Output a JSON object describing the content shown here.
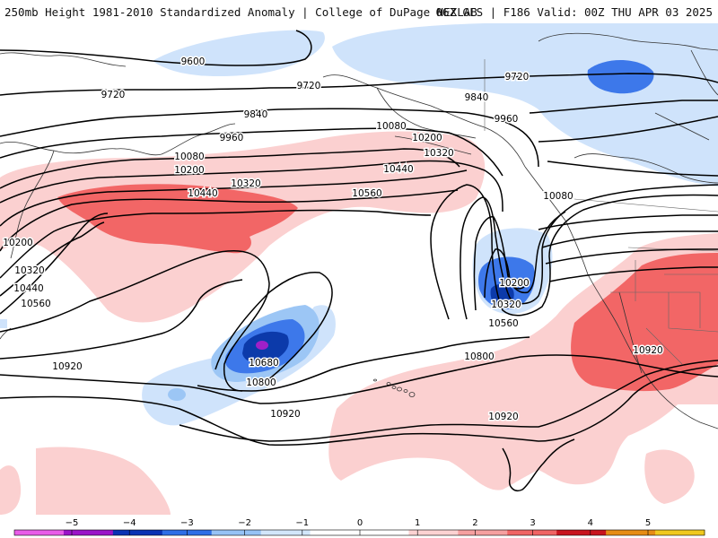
{
  "header": {
    "left": "250mb Height 1981-2010 Standardized Anomaly | College of DuPage NEXLAB",
    "right": "06Z GFS | F186 Valid: 00Z THU APR 03 2025"
  },
  "contour_labels": [
    {
      "id": "9600a",
      "text": "9600"
    },
    {
      "id": "9720a",
      "text": "9720"
    },
    {
      "id": "9720b",
      "text": "9720"
    },
    {
      "id": "9720c",
      "text": "9720"
    },
    {
      "id": "9840a",
      "text": "9840"
    },
    {
      "id": "9840b",
      "text": "9840"
    },
    {
      "id": "9960a",
      "text": "9960"
    },
    {
      "id": "9960b",
      "text": "9960"
    },
    {
      "id": "10080a",
      "text": "10080"
    },
    {
      "id": "10080b",
      "text": "10080"
    },
    {
      "id": "10080c",
      "text": "10080"
    },
    {
      "id": "10200a",
      "text": "10200"
    },
    {
      "id": "10200b",
      "text": "10200"
    },
    {
      "id": "10200c",
      "text": "10200"
    },
    {
      "id": "10200d",
      "text": "10200"
    },
    {
      "id": "10320a",
      "text": "10320"
    },
    {
      "id": "10320b",
      "text": "10320"
    },
    {
      "id": "10320c",
      "text": "10320"
    },
    {
      "id": "10320d",
      "text": "10320"
    },
    {
      "id": "10440a",
      "text": "10440"
    },
    {
      "id": "10440b",
      "text": "10440"
    },
    {
      "id": "10440c",
      "text": "10440"
    },
    {
      "id": "10560a",
      "text": "10560"
    },
    {
      "id": "10560b",
      "text": "10560"
    },
    {
      "id": "10560c",
      "text": "10560"
    },
    {
      "id": "10680a",
      "text": "10680"
    },
    {
      "id": "10800a",
      "text": "10800"
    },
    {
      "id": "10800b",
      "text": "10800"
    },
    {
      "id": "10920a",
      "text": "10920"
    },
    {
      "id": "10920b",
      "text": "10920"
    },
    {
      "id": "10920c",
      "text": "10920"
    },
    {
      "id": "10920d",
      "text": "10920"
    }
  ],
  "colorbar": {
    "ticks": [
      "−5",
      "−4",
      "−3",
      "−2",
      "−1",
      "0",
      "1",
      "2",
      "3",
      "4",
      "5"
    ],
    "colors": [
      "#e85ce8",
      "#9a14c8",
      "#0a32b4",
      "#2e6ee6",
      "#96c2f5",
      "#d2e6fb",
      "#ffffff",
      "#ffffff",
      "#fcd2d2",
      "#f5a0a0",
      "#f06464",
      "#c8141e",
      "#e68c14",
      "#f0c81e"
    ]
  },
  "colors": {
    "neg_light": "#cfe3fb",
    "neg_mid": "#9cc6f5",
    "neg_strong": "#3d78ea",
    "neg_deep": "#0c3aaa",
    "neg_extreme": "#a020c8",
    "pos_light": "#fbd0d0",
    "pos_strong": "#f26666",
    "contour": "#000000",
    "coast": "#333333"
  }
}
